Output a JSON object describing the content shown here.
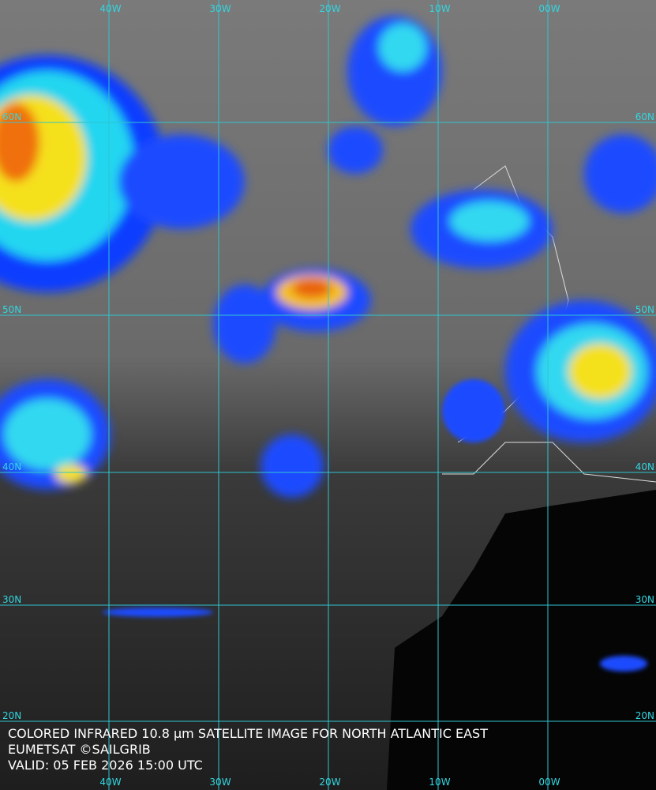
{
  "grid": {
    "meridians": [
      "40W",
      "30W",
      "20W",
      "10W",
      "00W"
    ],
    "parallels": [
      "60N",
      "50N",
      "40N",
      "30N",
      "20N"
    ]
  },
  "caption": [
    "COLORED INFRARED 10.8 μm SATELLITE IMAGE FOR NORTH ATLANTIC EAST",
    "EUMETSAT ©SAILGRIB",
    "VALID:  05 FEB 2026 15:00 UTC"
  ]
}
